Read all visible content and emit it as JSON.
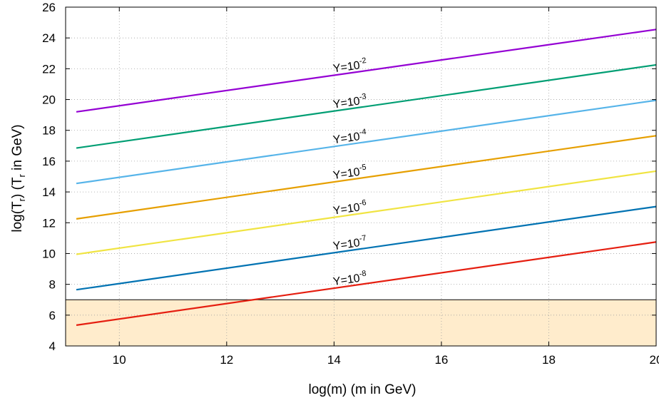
{
  "chart_data": {
    "type": "line",
    "title": "",
    "xlabel": "log(m) (m in GeV)",
    "ylabel": {
      "pre": "log(T",
      "sub": "r",
      "mid": ") (T",
      "sub2": "r",
      "post": " in GeV)"
    },
    "xlim": [
      9,
      20
    ],
    "ylim": [
      4,
      26
    ],
    "xticks": [
      10,
      12,
      14,
      16,
      18,
      20
    ],
    "yticks": [
      4,
      6,
      8,
      10,
      12,
      14,
      16,
      18,
      20,
      22,
      24,
      26
    ],
    "grid": true,
    "shaded_region": {
      "y_from": 4,
      "y_to": 7,
      "color": "#ffeccc"
    },
    "series": [
      {
        "label_base": "Y=10",
        "label_exp": "-2",
        "color": "#9400d3",
        "x": [
          9.2,
          20
        ],
        "y": [
          19.2,
          24.55
        ]
      },
      {
        "label_base": "Y=10",
        "label_exp": "-3",
        "color": "#009e73",
        "x": [
          9.2,
          20
        ],
        "y": [
          16.85,
          22.25
        ]
      },
      {
        "label_base": "Y=10",
        "label_exp": "-4",
        "color": "#56b4e9",
        "x": [
          9.2,
          20
        ],
        "y": [
          14.55,
          19.95
        ]
      },
      {
        "label_base": "Y=10",
        "label_exp": "-5",
        "color": "#e69f00",
        "x": [
          9.2,
          20
        ],
        "y": [
          12.25,
          17.65
        ]
      },
      {
        "label_base": "Y=10",
        "label_exp": "-6",
        "color": "#f0e442",
        "x": [
          9.2,
          20
        ],
        "y": [
          9.95,
          15.35
        ]
      },
      {
        "label_base": "Y=10",
        "label_exp": "-7",
        "color": "#0072b2",
        "x": [
          9.2,
          20
        ],
        "y": [
          7.65,
          13.05
        ]
      },
      {
        "label_base": "Y=10",
        "label_exp": "-8",
        "color": "#e51e10",
        "x": [
          9.2,
          20
        ],
        "y": [
          5.35,
          10.75
        ]
      }
    ]
  }
}
